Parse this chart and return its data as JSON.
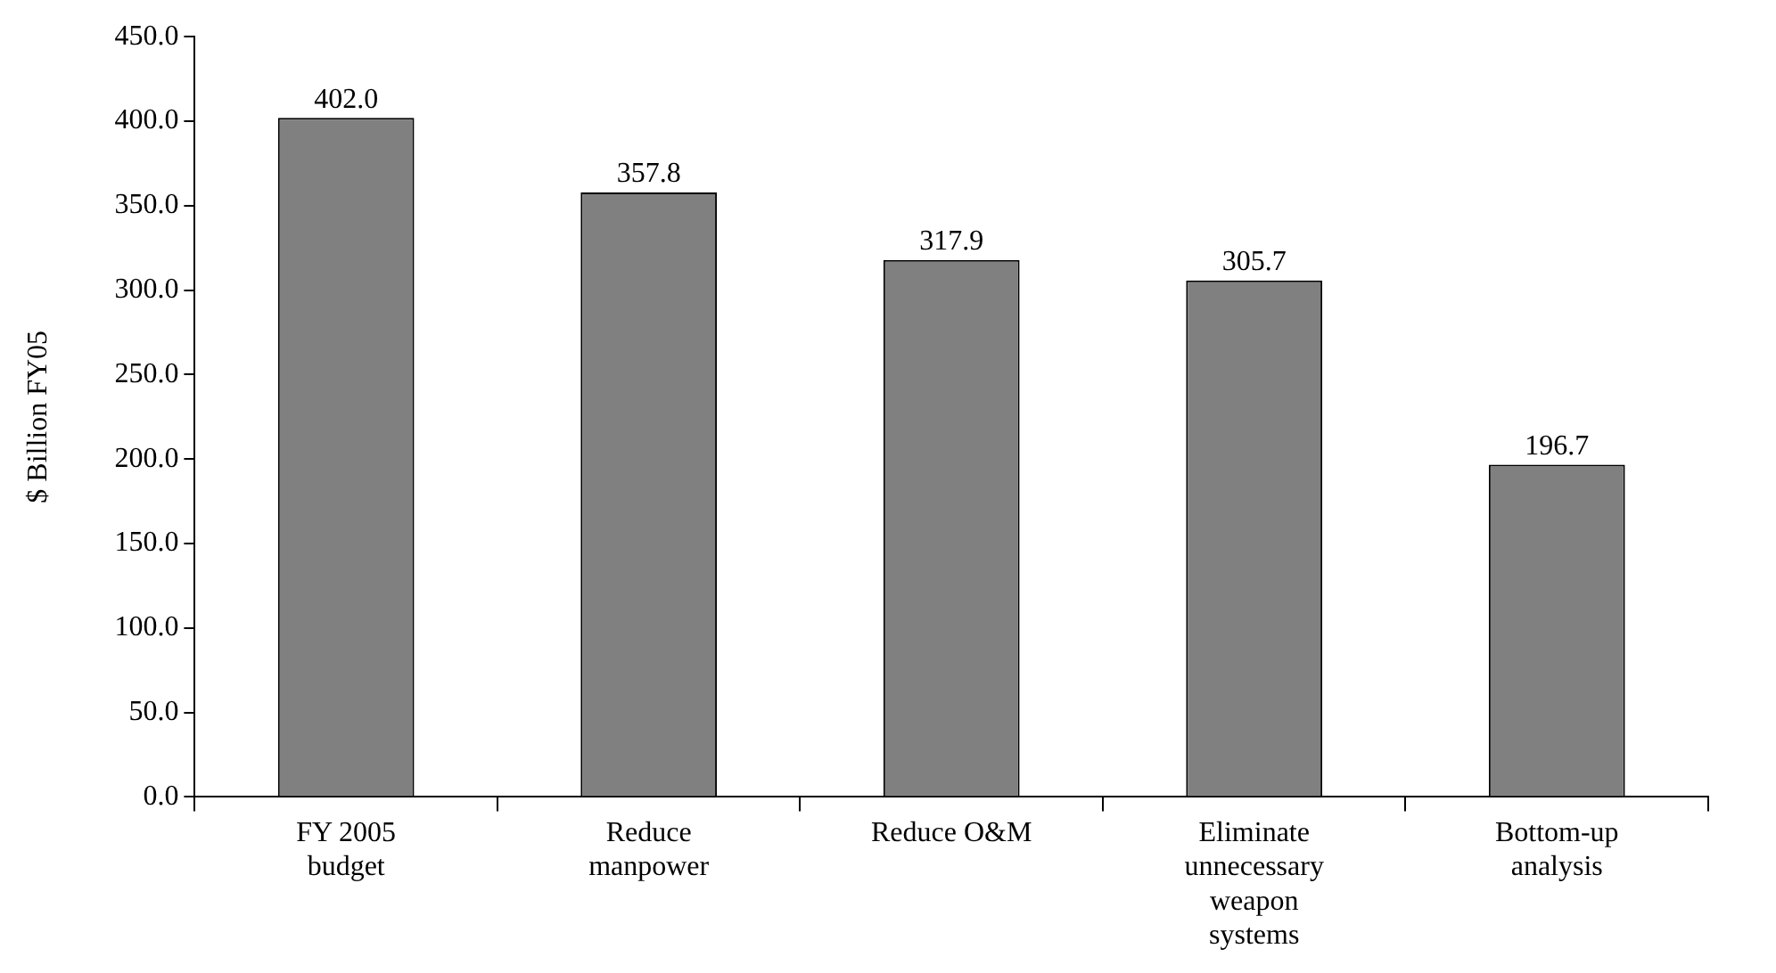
{
  "chart_data": {
    "type": "bar",
    "ylabel": "$ Billion FY05",
    "categories": [
      "FY 2005 budget",
      "Reduce manpower",
      "Reduce O&M",
      "Eliminate unnecessary weapon systems",
      "Bottom-up analysis"
    ],
    "values": [
      402.0,
      357.8,
      317.9,
      305.7,
      196.7
    ],
    "color": "#808080",
    "ylim": [
      0,
      450
    ],
    "yticks": [
      {
        "value": 0,
        "label": "0.0"
      },
      {
        "value": 50,
        "label": "50.0"
      },
      {
        "value": 100,
        "label": "100.0"
      },
      {
        "value": 150,
        "label": "150.0"
      },
      {
        "value": 200,
        "label": "200.0"
      },
      {
        "value": 250,
        "label": "250.0"
      },
      {
        "value": 300,
        "label": "300.0"
      },
      {
        "value": 350,
        "label": "350.0"
      },
      {
        "value": 400,
        "label": "400.0"
      },
      {
        "value": 450,
        "label": "450.0"
      }
    ],
    "value_labels": [
      "402.0",
      "357.8",
      "317.9",
      "305.7",
      "196.7"
    ],
    "grid": false,
    "legend": false
  }
}
